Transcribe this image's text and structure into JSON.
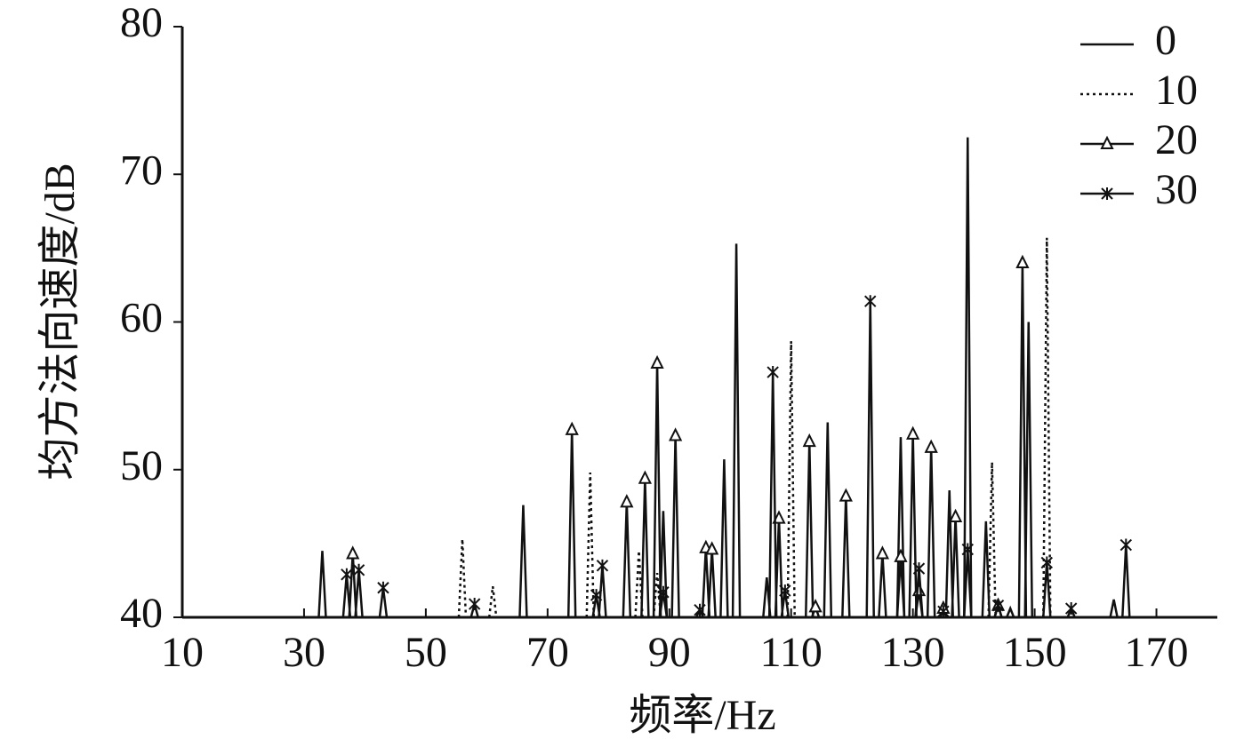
{
  "chart_data": {
    "type": "line",
    "x_label": "频率/Hz",
    "y_label": "均方法向速度/dB",
    "xlim": [
      10,
      180
    ],
    "ylim": [
      40,
      80
    ],
    "xticks": [
      10,
      30,
      50,
      70,
      90,
      110,
      130,
      150,
      170
    ],
    "yticks": [
      40,
      50,
      60,
      70,
      80
    ],
    "legend": "upper right",
    "series": [
      {
        "name": "0",
        "color": "#111111",
        "dash": "solid",
        "marker": "none",
        "x": [
          33,
          66,
          89,
          99,
          101,
          106,
          116,
          128,
          136,
          139,
          142,
          146,
          149,
          163
        ],
        "values": [
          44.5,
          47.6,
          47.2,
          50.7,
          65.3,
          42.7,
          53.2,
          52.2,
          48.6,
          72.5,
          46.5,
          40.6,
          60,
          41.2
        ]
      },
      {
        "name": "10",
        "color": "#111111",
        "dash": "dotted",
        "marker": "none",
        "x": [
          56,
          61,
          77,
          85,
          88,
          110,
          143,
          152
        ],
        "values": [
          45.3,
          42.1,
          49.8,
          44.5,
          43,
          58.7,
          50.5,
          65.7
        ]
      },
      {
        "name": "20",
        "color": "#111111",
        "dash": "solid",
        "marker": "triangle",
        "x": [
          38,
          74,
          83,
          86,
          88,
          91,
          96,
          97,
          108,
          113,
          114,
          119,
          125,
          128,
          130,
          131,
          133,
          135,
          137,
          144,
          148
        ],
        "values": [
          44.3,
          52.7,
          47.8,
          49.4,
          57.2,
          52.3,
          44.7,
          44.6,
          46.7,
          51.9,
          40.7,
          48.2,
          44.3,
          44.1,
          52.4,
          41.8,
          51.5,
          40.6,
          46.8,
          40.8,
          64
        ]
      },
      {
        "name": "30",
        "color": "#111111",
        "dash": "solid",
        "marker": "asterisk",
        "x": [
          37,
          39,
          43,
          58,
          78,
          79,
          89,
          95,
          107,
          109,
          123,
          131,
          135,
          139,
          144,
          152,
          156,
          165
        ],
        "values": [
          42.9,
          43.2,
          42,
          40.9,
          41.5,
          43.5,
          41.7,
          40.5,
          56.6,
          41.8,
          61.4,
          43.3,
          40.4,
          44.6,
          40.8,
          43.7,
          40.6,
          44.9
        ]
      }
    ]
  }
}
